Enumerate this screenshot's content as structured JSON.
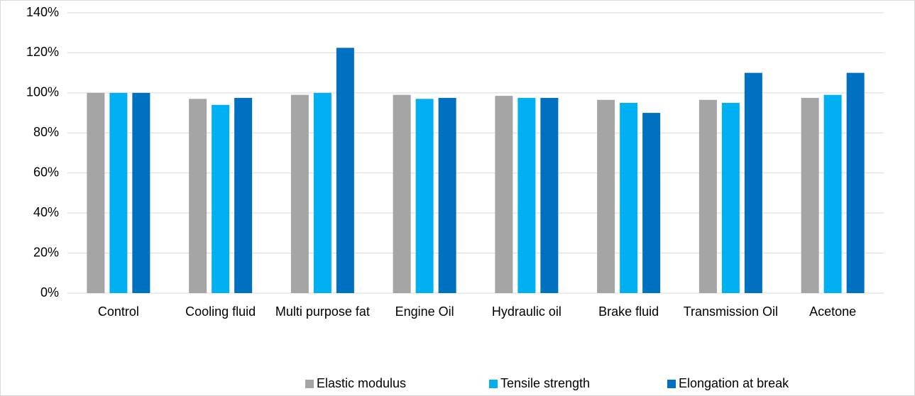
{
  "chart_data": {
    "type": "bar",
    "categories": [
      "Control",
      "Cooling fluid",
      "Multi purpose fat",
      "Engine Oil",
      "Hydraulic oil",
      "Brake fluid",
      "Transmission Oil",
      "Acetone"
    ],
    "series": [
      {
        "name": "Elastic modulus",
        "color": "#a5a5a5",
        "values": [
          100,
          97,
          99,
          99,
          98.5,
          96.5,
          96.5,
          97.5
        ]
      },
      {
        "name": "Tensile strength",
        "color": "#00b0f0",
        "values": [
          100,
          94,
          100,
          97,
          97.5,
          95,
          95,
          99
        ]
      },
      {
        "name": "Elongation at break",
        "color": "#0070c0",
        "values": [
          100,
          97.5,
          122.5,
          97.5,
          97.5,
          90,
          110,
          110
        ]
      }
    ],
    "ylim": [
      0,
      140
    ],
    "yticks": [
      {
        "value": 0,
        "label": "0%"
      },
      {
        "value": 20,
        "label": "20%"
      },
      {
        "value": 40,
        "label": "40%"
      },
      {
        "value": 60,
        "label": "60%"
      },
      {
        "value": 80,
        "label": "80%"
      },
      {
        "value": 100,
        "label": "100%"
      },
      {
        "value": 120,
        "label": "120%"
      },
      {
        "value": 140,
        "label": "140%"
      }
    ],
    "grid": true,
    "legend": "bottom"
  }
}
